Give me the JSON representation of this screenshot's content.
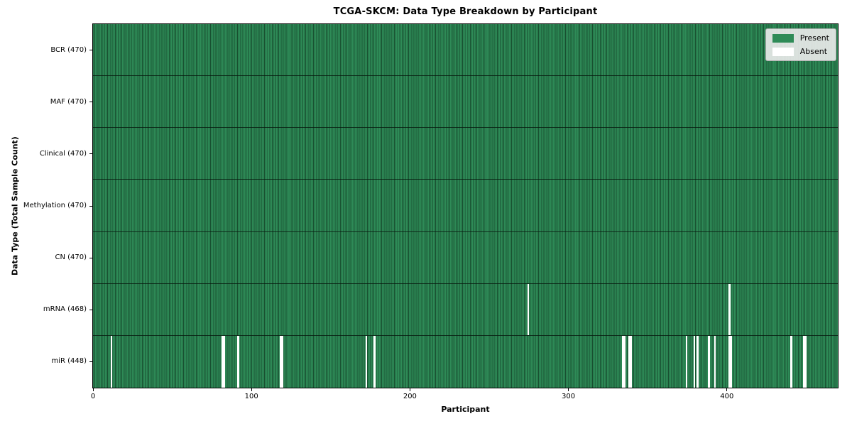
{
  "chart_data": {
    "type": "heatmap",
    "title": "TCGA-SKCM: Data Type Breakdown by Participant",
    "xlabel": "Participant",
    "ylabel": "Data Type (Total Sample Count)",
    "xlim": [
      0,
      470
    ],
    "n_participants": 470,
    "x_ticks": [
      0,
      100,
      200,
      300,
      400
    ],
    "grid": false,
    "legend_position": "upper right",
    "colors": {
      "present": "#2e8b57",
      "absent": "#ffffff",
      "cell_edge": "#0a2313"
    },
    "legend": [
      {
        "label": "Present",
        "color": "#2e8b57"
      },
      {
        "label": "Absent",
        "color": "#ffffff"
      }
    ],
    "rows": [
      {
        "label": "BCR (470)",
        "present_count": 470,
        "absent_participants": []
      },
      {
        "label": "MAF (470)",
        "present_count": 470,
        "absent_participants": []
      },
      {
        "label": "Clinical (470)",
        "present_count": 470,
        "absent_participants": []
      },
      {
        "label": "Methylation (470)",
        "present_count": 470,
        "absent_participants": []
      },
      {
        "label": "CN (470)",
        "present_count": 470,
        "absent_participants": []
      },
      {
        "label": "mRNA (468)",
        "present_count": 468,
        "absent_participants": [
          274,
          401
        ]
      },
      {
        "label": "miR (448)",
        "present_count": 448,
        "absent_participants": [
          11,
          81,
          82,
          91,
          118,
          119,
          172,
          177,
          334,
          335,
          338,
          339,
          374,
          379,
          381,
          388,
          392,
          401,
          402,
          440,
          448,
          449
        ]
      }
    ]
  }
}
